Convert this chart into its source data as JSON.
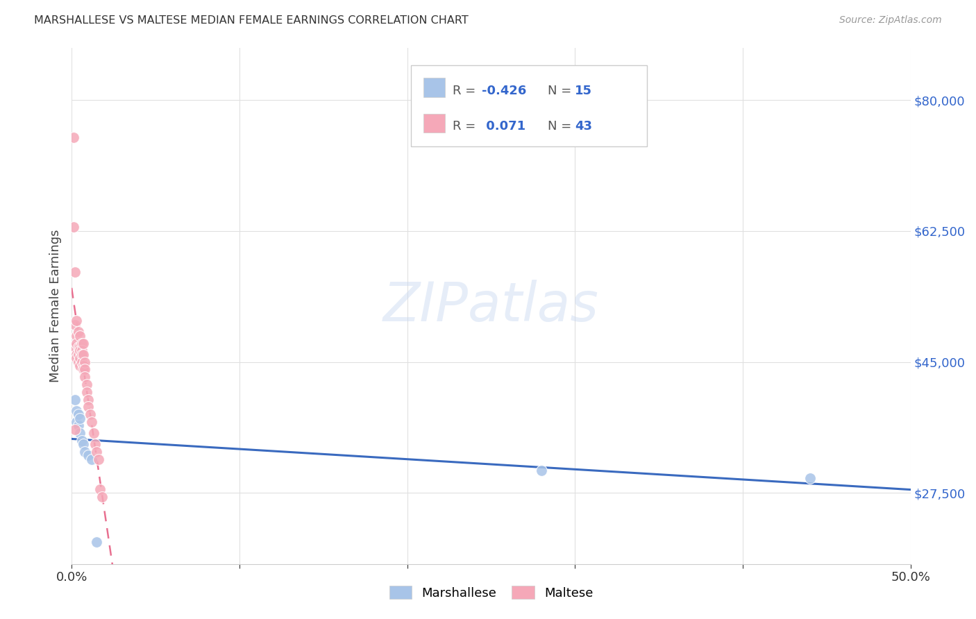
{
  "title": "MARSHALLESE VS MALTESE MEDIAN FEMALE EARNINGS CORRELATION CHART",
  "source": "Source: ZipAtlas.com",
  "ylabel": "Median Female Earnings",
  "yticks": [
    27500,
    45000,
    62500,
    80000
  ],
  "ytick_labels": [
    "$27,500",
    "$45,000",
    "$62,500",
    "$80,000"
  ],
  "xmin": 0.0,
  "xmax": 0.5,
  "ymin": 18000,
  "ymax": 87000,
  "legend_r_marshallese": "-0.426",
  "legend_n_marshallese": "15",
  "legend_r_maltese": "0.071",
  "legend_n_maltese": "43",
  "marshallese_color": "#a8c4e8",
  "maltese_color": "#f5a8b8",
  "marshallese_line_color": "#3a6abf",
  "maltese_line_color": "#e87090",
  "marshallese_x": [
    0.002,
    0.003,
    0.003,
    0.004,
    0.004,
    0.005,
    0.005,
    0.006,
    0.007,
    0.008,
    0.01,
    0.012,
    0.015,
    0.28,
    0.44
  ],
  "marshallese_y": [
    40000,
    38500,
    37000,
    38000,
    36500,
    37500,
    35500,
    34500,
    34000,
    33000,
    32500,
    32000,
    21000,
    30500,
    29500
  ],
  "maltese_x": [
    0.001,
    0.001,
    0.002,
    0.002,
    0.002,
    0.003,
    0.003,
    0.003,
    0.003,
    0.003,
    0.004,
    0.004,
    0.004,
    0.004,
    0.005,
    0.005,
    0.005,
    0.005,
    0.005,
    0.006,
    0.006,
    0.006,
    0.006,
    0.007,
    0.007,
    0.007,
    0.007,
    0.008,
    0.008,
    0.008,
    0.009,
    0.009,
    0.01,
    0.01,
    0.011,
    0.012,
    0.013,
    0.014,
    0.015,
    0.016,
    0.017,
    0.018,
    0.002
  ],
  "maltese_y": [
    75000,
    63000,
    57000,
    50000,
    47000,
    50500,
    48500,
    47500,
    46000,
    45500,
    49000,
    47000,
    46000,
    45000,
    48500,
    47000,
    46500,
    45500,
    44500,
    47500,
    46500,
    46000,
    45000,
    47500,
    46000,
    44500,
    44000,
    45000,
    44000,
    43000,
    42000,
    41000,
    40000,
    39000,
    38000,
    37000,
    35500,
    34000,
    33000,
    32000,
    28000,
    27000,
    36000
  ]
}
